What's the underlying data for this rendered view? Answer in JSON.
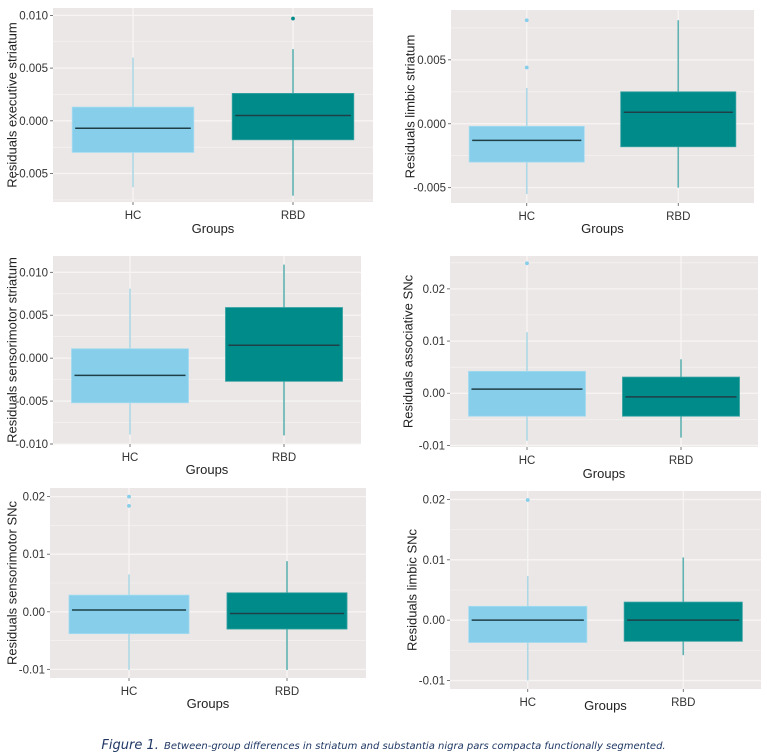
{
  "colors": {
    "panel_bg": "#ebe7e6",
    "grid": "#f7f5f4",
    "hc_fill": "#87ceeb",
    "rbd_fill": "#008b8b",
    "hc_whisker": "#add8e6",
    "rbd_whisker": "#5fb3b3",
    "median": "#1f3f46"
  },
  "caption": {
    "figure_label": "Figure 1.",
    "text": "Between-group differences in striatum and substantia nigra pars compacta functionally segmented."
  },
  "chart_data": [
    {
      "type": "box",
      "id": "executive-striatum",
      "position": "top-left",
      "ylabel": "Residuals executive striatum",
      "xlabel": "Groups",
      "categories": [
        "HC",
        "RBD"
      ],
      "yticks": [
        -0.005,
        0.0,
        0.005,
        0.01
      ],
      "ytick_labels": [
        "-0.005",
        "0.000",
        "0.005",
        "0.010"
      ],
      "ylim": [
        -0.0077,
        0.0107
      ],
      "grid": true,
      "series": [
        {
          "name": "HC",
          "whisker_low": -0.0063,
          "q1": -0.003,
          "median": -0.0007,
          "q3": 0.0013,
          "whisker_high": 0.006,
          "outliers": []
        },
        {
          "name": "RBD",
          "whisker_low": -0.0071,
          "q1": -0.0018,
          "median": 0.0005,
          "q3": 0.0026,
          "whisker_high": 0.0068,
          "outliers": [
            0.0097
          ]
        }
      ]
    },
    {
      "type": "box",
      "id": "limbic-striatum",
      "position": "top-right",
      "ylabel": "Residuals limbic striatum",
      "xlabel": "Groups",
      "categories": [
        "HC",
        "RBD"
      ],
      "yticks": [
        -0.005,
        0.0,
        0.005
      ],
      "ytick_labels": [
        "-0.005",
        "0.000",
        "0.005"
      ],
      "ylim": [
        -0.0062,
        0.0089
      ],
      "grid": true,
      "series": [
        {
          "name": "HC",
          "whisker_low": -0.0055,
          "q1": -0.003,
          "median": -0.0013,
          "q3": -0.0002,
          "whisker_high": 0.0028,
          "outliers": [
            0.0081,
            0.0044
          ]
        },
        {
          "name": "RBD",
          "whisker_low": -0.005,
          "q1": -0.0018,
          "median": 0.0009,
          "q3": 0.0025,
          "whisker_high": 0.0081,
          "outliers": []
        }
      ]
    },
    {
      "type": "box",
      "id": "sensorimotor-striatum",
      "position": "middle-left",
      "ylabel": "Residuals sensorimotor striatum",
      "xlabel": "Groups",
      "categories": [
        "HC",
        "RBD"
      ],
      "yticks": [
        -0.01,
        -0.005,
        0.0,
        0.005,
        0.01
      ],
      "ytick_labels": [
        "-0.010",
        "-0.005",
        "0.000",
        "0.005",
        "0.010"
      ],
      "ylim": [
        -0.01,
        0.0119
      ],
      "grid": true,
      "series": [
        {
          "name": "HC",
          "whisker_low": -0.0089,
          "q1": -0.0052,
          "median": -0.002,
          "q3": 0.0011,
          "whisker_high": 0.0081,
          "outliers": []
        },
        {
          "name": "RBD",
          "whisker_low": -0.009,
          "q1": -0.0027,
          "median": 0.0015,
          "q3": 0.0059,
          "whisker_high": 0.0109,
          "outliers": []
        }
      ]
    },
    {
      "type": "box",
      "id": "associative-snc",
      "position": "middle-right",
      "ylabel": "Residuals associative SNc",
      "xlabel": "Groups",
      "categories": [
        "HC",
        "RBD"
      ],
      "yticks": [
        -0.01,
        0.0,
        0.01,
        0.02
      ],
      "ytick_labels": [
        "-0.01",
        "0.00",
        "0.01",
        "0.02"
      ],
      "ylim": [
        -0.0103,
        0.0263
      ],
      "grid": true,
      "series": [
        {
          "name": "HC",
          "whisker_low": -0.0091,
          "q1": -0.0044,
          "median": 0.0008,
          "q3": 0.0042,
          "whisker_high": 0.0117,
          "outliers": [
            0.0249
          ]
        },
        {
          "name": "RBD",
          "whisker_low": -0.0085,
          "q1": -0.0044,
          "median": -0.0007,
          "q3": 0.0031,
          "whisker_high": 0.0065,
          "outliers": []
        }
      ]
    },
    {
      "type": "box",
      "id": "sensorimotor-snc",
      "position": "bottom-left",
      "ylabel": "Residuals sensorimotor SNc",
      "xlabel": "Groups",
      "categories": [
        "HC",
        "RBD"
      ],
      "yticks": [
        -0.01,
        0.0,
        0.01,
        0.02
      ],
      "ytick_labels": [
        "-0.01",
        "0.00",
        "0.01",
        "0.02"
      ],
      "ylim": [
        -0.0115,
        0.0215
      ],
      "grid": true,
      "series": [
        {
          "name": "HC",
          "whisker_low": -0.0101,
          "q1": -0.0038,
          "median": 0.0003,
          "q3": 0.0029,
          "whisker_high": 0.0065,
          "outliers": [
            0.02,
            0.0184
          ]
        },
        {
          "name": "RBD",
          "whisker_low": -0.0101,
          "q1": -0.003,
          "median": -0.0003,
          "q3": 0.0033,
          "whisker_high": 0.0088,
          "outliers": []
        }
      ]
    },
    {
      "type": "box",
      "id": "limbic-snc",
      "position": "bottom-right",
      "ylabel": "Residuals limbic SNc",
      "xlabel": "Groups",
      "categories": [
        "HC",
        "RBD"
      ],
      "yticks": [
        -0.01,
        0.0,
        0.01,
        0.02
      ],
      "ytick_labels": [
        "-0.01",
        "0.00",
        "0.01",
        "0.02"
      ],
      "ylim": [
        -0.0114,
        0.0214
      ],
      "grid": true,
      "series": [
        {
          "name": "HC",
          "whisker_low": -0.01,
          "q1": -0.0037,
          "median": 0.0,
          "q3": 0.0023,
          "whisker_high": 0.0073,
          "outliers": [
            0.0199
          ]
        },
        {
          "name": "RBD",
          "whisker_low": -0.0058,
          "q1": -0.0035,
          "median": 0.0,
          "q3": 0.003,
          "whisker_high": 0.0104,
          "outliers": []
        }
      ]
    }
  ]
}
